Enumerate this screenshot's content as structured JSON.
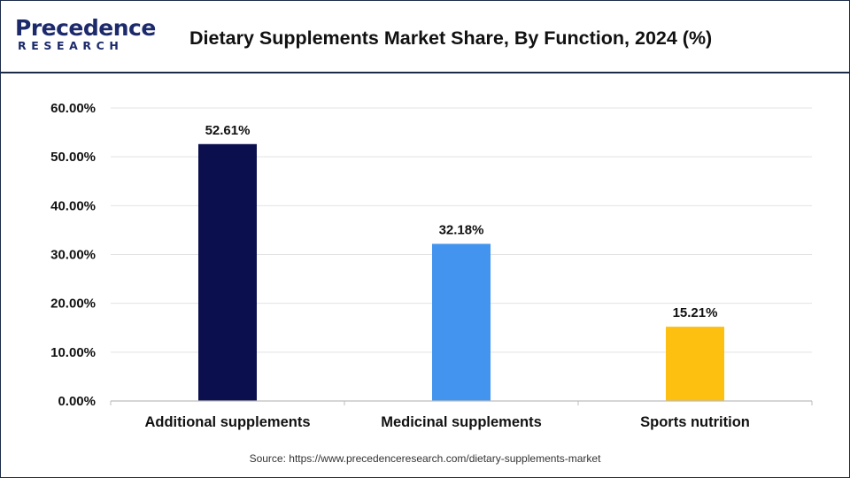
{
  "brand": {
    "logo_top": "Precedence",
    "logo_bottom": "RESEARCH"
  },
  "colors": {
    "brand_navy": "#1c2a6b",
    "accent_blue": "#3b8fe0"
  },
  "chart_data": {
    "type": "bar",
    "title": "Dietary Supplements Market Share, By Function, 2024 (%)",
    "xlabel": "",
    "ylabel": "",
    "categories": [
      "Additional supplements",
      "Medicinal supplements",
      "Sports nutrition"
    ],
    "values": [
      52.61,
      32.18,
      15.21
    ],
    "value_labels": [
      "52.61%",
      "32.18%",
      "15.21%"
    ],
    "bar_colors": [
      "#0b0f4d",
      "#4294ee",
      "#fdc010"
    ],
    "ylim": [
      0,
      60
    ],
    "yticks": [
      0,
      10,
      20,
      30,
      40,
      50,
      60
    ],
    "ytick_labels": [
      "0.00%",
      "10.00%",
      "20.00%",
      "30.00%",
      "40.00%",
      "50.00%",
      "60.00%"
    ],
    "grid": true,
    "legend": "none"
  },
  "source": "Source: https://www.precedenceresearch.com/dietary-supplements-market"
}
